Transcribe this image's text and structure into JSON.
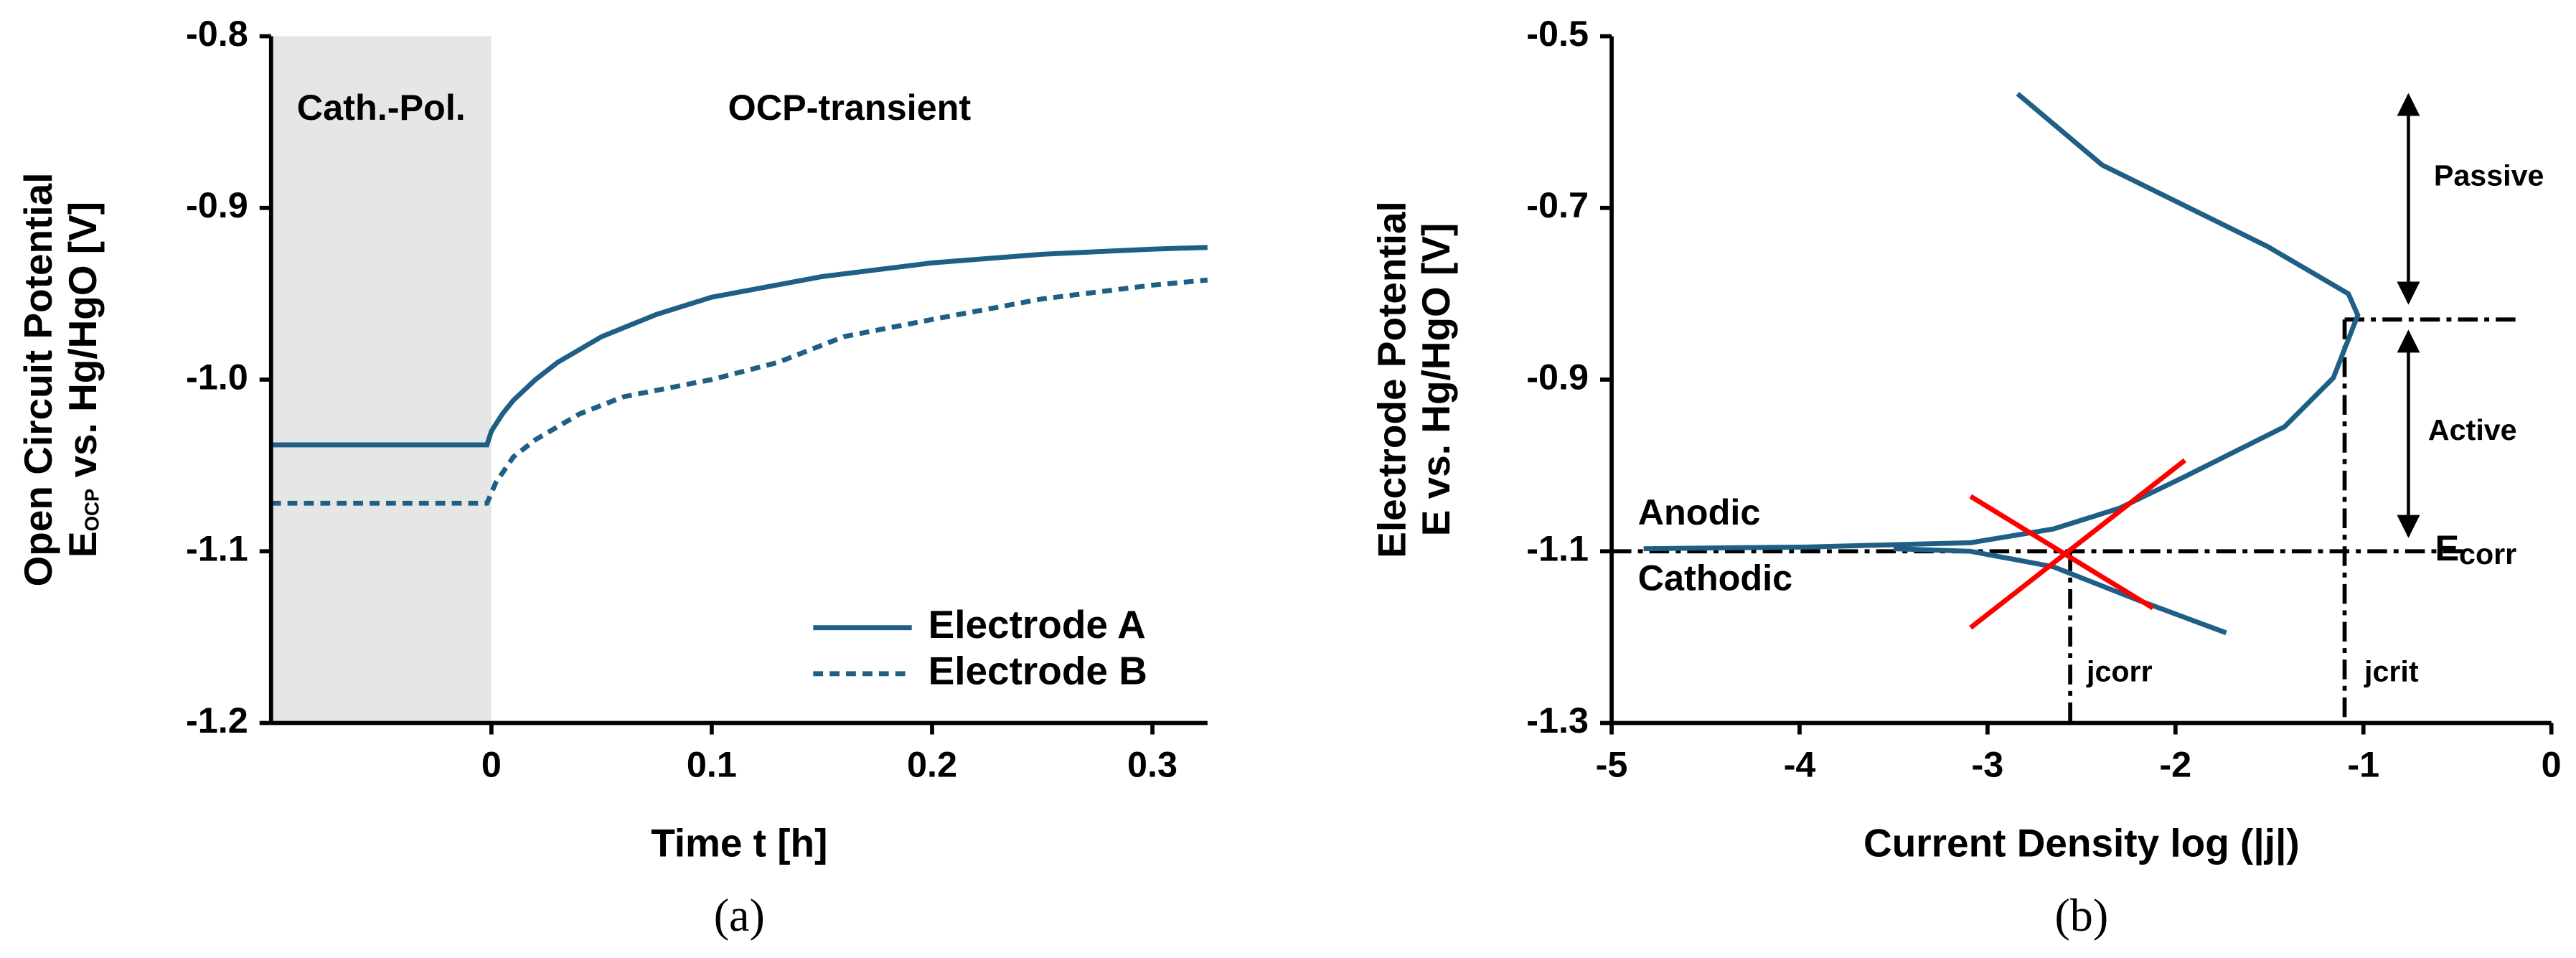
{
  "chart_data": [
    {
      "type": "line",
      "x_label": "Time t [h]",
      "y_label": {
        "line1": "Open Circuit Potential",
        "symbol": "E",
        "subscript": "OCP",
        "rest": " vs. Hg/HgO [V]"
      },
      "caption": "(a)",
      "xlim": [
        -0.1,
        0.325
      ],
      "xticks": [
        0,
        0.1,
        0.2,
        0.3
      ],
      "ylim": [
        -1.2,
        -0.8
      ],
      "yticks": [
        -0.8,
        -0.9,
        {
          "value": -1,
          "label": "-1.0"
        },
        -1.1,
        -1.2
      ],
      "shade": {
        "x": [
          -0.1,
          0
        ],
        "color": "#e6e6e6"
      },
      "annotations": [
        "Cath.-Pol.",
        "OCP-transient"
      ],
      "legend": "lower right",
      "series": [
        {
          "name": "Electrode A",
          "color": "#1f5f86",
          "dash": "solid",
          "x": [
            -0.1,
            -0.002,
            0,
            0.005,
            0.01,
            0.02,
            0.03,
            0.05,
            0.075,
            0.1,
            0.15,
            0.2,
            0.25,
            0.3,
            0.325
          ],
          "values": [
            -1.038,
            -1.038,
            -1.03,
            -1.02,
            -1.012,
            -1.0,
            -0.99,
            -0.975,
            -0.962,
            -0.952,
            -0.94,
            -0.932,
            -0.927,
            -0.924,
            -0.923
          ]
        },
        {
          "name": "Electrode B",
          "color": "#1f5f86",
          "dash": "dashed",
          "x": [
            -0.1,
            -0.002,
            0.002,
            0.01,
            0.02,
            0.04,
            0.06,
            0.1,
            0.13,
            0.16,
            0.2,
            0.25,
            0.3,
            0.325
          ],
          "values": [
            -1.072,
            -1.072,
            -1.06,
            -1.045,
            -1.035,
            -1.02,
            -1.01,
            -1.0,
            -0.99,
            -0.975,
            -0.965,
            -0.953,
            -0.945,
            -0.942
          ]
        }
      ]
    },
    {
      "type": "line",
      "x_label": "Current Density log (|j|)",
      "y_label": {
        "line1": "Electrode Potential",
        "line2": "E vs. Hg/HgO [V]"
      },
      "caption": "(b)",
      "xlim": [
        -5,
        0
      ],
      "xticks": [
        -5,
        -4,
        -3,
        -2,
        -1,
        0
      ],
      "ylim": [
        -1.3,
        -0.5
      ],
      "yticks": [
        -0.5,
        -0.7,
        -0.9,
        -1.1,
        -1.3
      ],
      "series": [
        {
          "name": "Anodic",
          "color": "#1f5f86",
          "dash": "solid",
          "x": [
            -4.83,
            -3.96,
            -3.09,
            -2.65,
            -2.3,
            -1.95,
            -1.42,
            -1.16,
            -1.03,
            -1.08,
            -1.51,
            -2.39,
            -2.84
          ],
          "values": [
            -1.097,
            -1.095,
            -1.09,
            -1.074,
            -1.05,
            -1.013,
            -0.955,
            -0.898,
            -0.825,
            -0.8,
            -0.745,
            -0.65,
            -0.567
          ]
        },
        {
          "name": "Cathodic",
          "color": "#1f5f86",
          "dash": "solid",
          "x": [
            -3.5,
            -3.09,
            -2.65,
            -2.21,
            -1.73
          ],
          "values": [
            -1.097,
            -1.1,
            -1.118,
            -1.156,
            -1.195
          ]
        },
        {
          "color": "#ff0000",
          "dash": "solid",
          "x": [
            -3.09,
            -2.12
          ],
          "values": [
            -1.036,
            -1.166
          ]
        },
        {
          "color": "#ff0000",
          "dash": "solid",
          "x": [
            -3.09,
            -1.95
          ],
          "values": [
            -1.189,
            -0.994
          ]
        }
      ],
      "ecorr": {
        "value": -1.1,
        "symbol": "E",
        "subscript": "corr"
      },
      "jcorr": {
        "value": -2.56,
        "label": "jcorr"
      },
      "jcrit": {
        "value": -1.1,
        "label": "jcrit"
      },
      "epass": -0.83,
      "regions": [
        "Passive",
        "Active"
      ]
    }
  ]
}
